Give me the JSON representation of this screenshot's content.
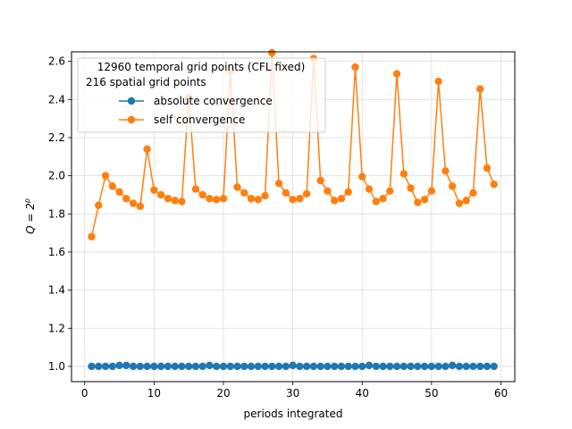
{
  "chart_data": {
    "type": "line",
    "title": "",
    "xlabel": "periods integrated",
    "ylabel": "Q = 2",
    "ylabel_superscript": "p",
    "xlim": [
      -1.9,
      62.0
    ],
    "ylim": [
      0.92,
      2.65
    ],
    "x_ticks": [
      0,
      10,
      20,
      30,
      40,
      50,
      60
    ],
    "y_ticks": [
      1.0,
      1.2,
      1.4,
      1.6,
      1.8,
      2.0,
      2.2,
      2.4,
      2.6
    ],
    "grid": true,
    "legend": {
      "placement": "top-left",
      "title_lines": [
        "12960 temporal grid points (CFL fixed)",
        "216 spatial grid points"
      ]
    },
    "x": [
      1,
      2,
      3,
      4,
      5,
      6,
      7,
      8,
      9,
      10,
      11,
      12,
      13,
      14,
      15,
      16,
      17,
      18,
      19,
      20,
      21,
      22,
      23,
      24,
      25,
      26,
      27,
      28,
      29,
      30,
      31,
      32,
      33,
      34,
      35,
      36,
      37,
      38,
      39,
      40,
      41,
      42,
      43,
      44,
      45,
      46,
      47,
      48,
      49,
      50,
      51,
      52,
      53,
      54,
      55,
      56,
      57,
      58,
      59
    ],
    "series": [
      {
        "name": "absolute convergence",
        "color": "#1f77b4",
        "values": [
          1.0,
          1.0,
          1.0,
          1.0,
          1.005,
          1.005,
          1.0,
          1.0,
          1.0,
          1.0,
          1.0,
          1.0,
          1.0,
          1.0,
          1.0,
          1.0,
          1.0,
          1.005,
          1.0,
          1.0,
          1.0,
          1.0,
          1.0,
          1.0,
          1.0,
          1.0,
          1.0,
          1.0,
          1.0,
          1.005,
          1.0,
          1.0,
          1.0,
          1.0,
          1.0,
          1.0,
          1.0,
          1.0,
          1.0,
          1.0,
          1.005,
          1.0,
          1.0,
          1.0,
          1.0,
          1.0,
          1.0,
          1.0,
          1.0,
          1.0,
          1.0,
          1.0,
          1.005,
          1.0,
          1.0,
          1.0,
          1.0,
          1.0,
          1.0
        ]
      },
      {
        "name": "self convergence",
        "color": "#ff7f0e",
        "values": [
          1.68,
          1.845,
          2.0,
          1.945,
          1.915,
          1.88,
          1.855,
          1.84,
          2.14,
          1.925,
          1.9,
          1.88,
          1.87,
          1.865,
          2.41,
          1.93,
          1.9,
          1.88,
          1.875,
          1.88,
          2.55,
          1.94,
          1.91,
          1.88,
          1.875,
          1.895,
          2.645,
          1.96,
          1.91,
          1.875,
          1.88,
          1.905,
          2.615,
          1.975,
          1.92,
          1.87,
          1.88,
          1.915,
          2.57,
          1.995,
          1.93,
          1.865,
          1.88,
          1.92,
          2.535,
          2.01,
          1.935,
          1.86,
          1.875,
          1.92,
          2.495,
          2.025,
          1.945,
          1.855,
          1.87,
          1.91,
          2.455,
          2.04,
          1.955
        ]
      }
    ]
  }
}
